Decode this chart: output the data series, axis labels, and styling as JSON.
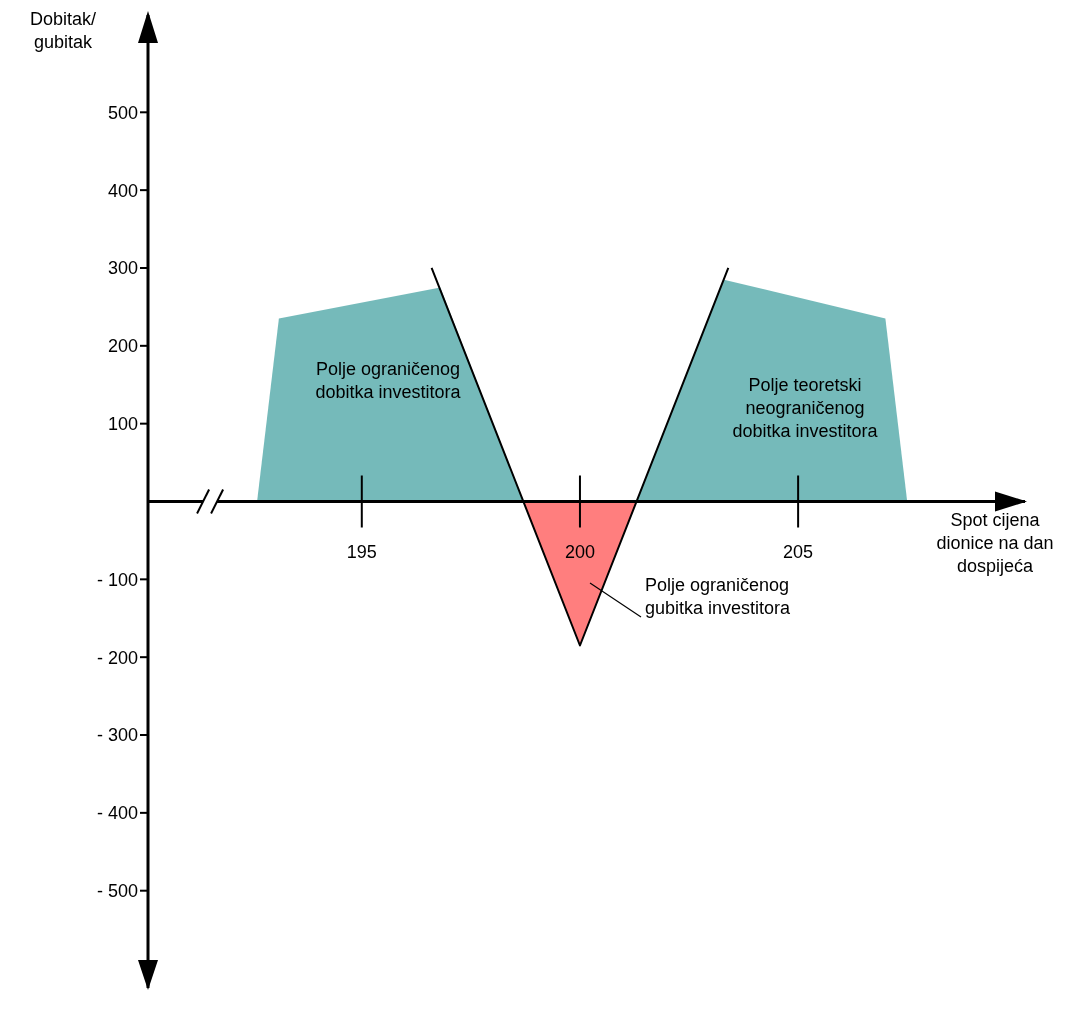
{
  "chart_data": {
    "type": "area",
    "xlabel": "Spot cijena dionice na dan dospijeća",
    "ylabel": "Dobitak/ gubitak",
    "xlim": [
      190.1,
      210.2
    ],
    "ylim": [
      -625,
      625
    ],
    "xticks": [
      195,
      200,
      205
    ],
    "yticks": [
      {
        "value": -500,
        "label": "- 500"
      },
      {
        "value": -400,
        "label": "- 400"
      },
      {
        "value": -300,
        "label": "- 300"
      },
      {
        "value": -200,
        "label": "- 200"
      },
      {
        "value": -100,
        "label": "- 100"
      },
      {
        "value": 100,
        "label": "100"
      },
      {
        "value": 200,
        "label": "200"
      },
      {
        "value": 300,
        "label": "300"
      },
      {
        "value": 400,
        "label": "400"
      },
      {
        "value": 500,
        "label": "500"
      }
    ],
    "series": [
      {
        "color": "#66b3b3",
        "x": [
          192.6,
          193.1,
          196.8,
          198.7
        ],
        "values": [
          0,
          235,
          275,
          0
        ]
      },
      {
        "color": "#66b3b3",
        "x": [
          201.3,
          203.3,
          207.0,
          207.5
        ],
        "values": [
          0,
          285,
          235,
          0
        ]
      },
      {
        "color": "#ff7070",
        "x": [
          198.7,
          200,
          201.3
        ],
        "values": [
          0,
          -185,
          0
        ]
      },
      {
        "type": "line",
        "color": "#000000",
        "x": [
          196.6,
          200,
          203.4
        ],
        "values": [
          300,
          -185,
          300
        ]
      }
    ],
    "annotations": [
      "Polje ograničenog dobitka investitora",
      "Polje teoretski neograničenog dobitka investitora",
      "Polje ograničenog gubitka investitora"
    ],
    "grid": false,
    "legend": false,
    "marker": "none",
    "line_style": "solid"
  }
}
